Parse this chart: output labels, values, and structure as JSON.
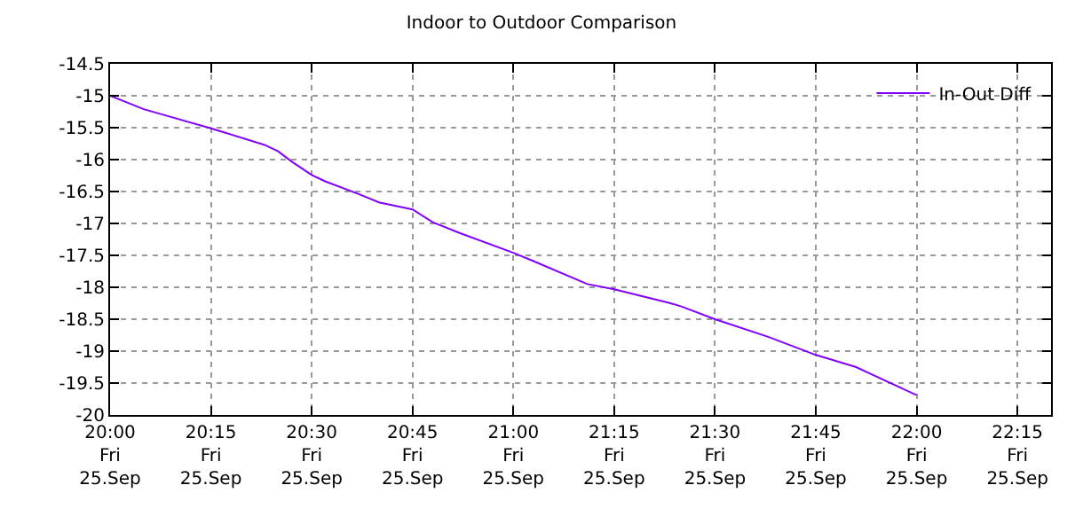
{
  "chart_data": {
    "type": "line",
    "title": "Indoor to Outdoor Comparison",
    "x": [
      "--09-25T20:00",
      "--09-25T20:05",
      "--09-25T20:08",
      "--09-25T20:15",
      "--09-25T20:23",
      "--09-25T20:25",
      "--09-25T20:27",
      "--09-25T20:30",
      "--09-25T20:32",
      "--09-25T20:37",
      "--09-25T20:40",
      "--09-25T20:45",
      "--09-25T20:48",
      "--09-25T20:52",
      "--09-25T21:00",
      "--09-25T21:03",
      "--09-25T21:11",
      "--09-25T21:15",
      "--09-25T21:23",
      "--09-25T21:25",
      "--09-25T21:30",
      "--09-25T21:38",
      "--09-25T21:45",
      "--09-25T21:51",
      "--09-25T21:53",
      "--09-25T22:00"
    ],
    "series": [
      {
        "name": "In-Out Diff",
        "color": "#8000ff",
        "values": [
          -15.0,
          -15.21,
          -15.3,
          -15.51,
          -15.77,
          -15.87,
          -16.03,
          -16.24,
          -16.34,
          -16.54,
          -16.67,
          -16.78,
          -16.98,
          -17.15,
          -17.46,
          -17.59,
          -17.95,
          -18.03,
          -18.24,
          -18.3,
          -18.5,
          -18.78,
          -19.06,
          -19.25,
          -19.35,
          -19.69
        ]
      }
    ],
    "xlim": [
      "--09-25T20:00",
      "--09-25T22:20"
    ],
    "xticks": [
      {
        "value": "--09-25T20:00",
        "label": "20:00\nFri\n25.Sep"
      },
      {
        "value": "--09-25T20:15",
        "label": "20:15\nFri\n25.Sep"
      },
      {
        "value": "--09-25T20:30",
        "label": "20:30\nFri\n25.Sep"
      },
      {
        "value": "--09-25T20:45",
        "label": "20:45\nFri\n25.Sep"
      },
      {
        "value": "--09-25T21:00",
        "label": "21:00\nFri\n25.Sep"
      },
      {
        "value": "--09-25T21:15",
        "label": "21:15\nFri\n25.Sep"
      },
      {
        "value": "--09-25T21:30",
        "label": "21:30\nFri\n25.Sep"
      },
      {
        "value": "--09-25T21:45",
        "label": "21:45\nFri\n25.Sep"
      },
      {
        "value": "--09-25T22:00",
        "label": "22:00\nFri\n25.Sep"
      },
      {
        "value": "--09-25T22:15",
        "label": "22:15\nFri\n25.Sep"
      }
    ],
    "ylim": [
      -20,
      -14.5
    ],
    "yticks": [
      -20,
      -19.5,
      -19,
      -18.5,
      -18,
      -17.5,
      -17,
      -16.5,
      -16,
      -15.5,
      -15,
      -14.5
    ],
    "grid": true,
    "legend": "top right",
    "marker": "none",
    "line_style": "solid"
  }
}
